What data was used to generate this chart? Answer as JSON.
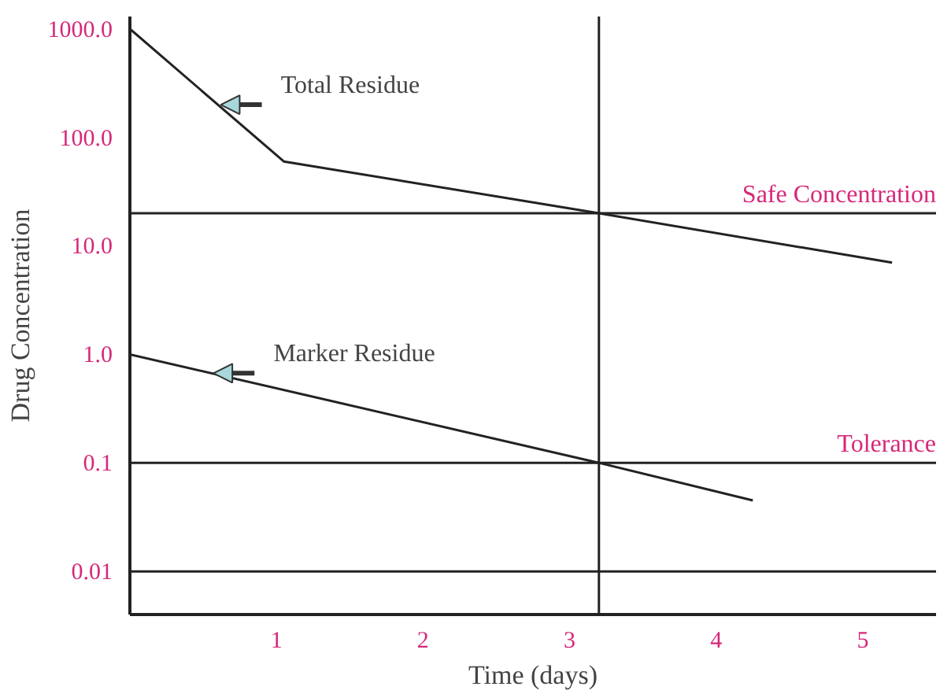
{
  "chart_data": {
    "type": "line",
    "xlabel": "Time (days)",
    "ylabel": "Drug Concentration",
    "log": "y",
    "series": [
      {
        "x": [
          0,
          1.05,
          3.2,
          5.2
        ],
        "values": [
          1000,
          60,
          20,
          7
        ],
        "color": "#222222"
      },
      {
        "x": [
          0,
          3.2,
          4.25
        ],
        "values": [
          1,
          0.1,
          0.045
        ],
        "color": "#222222"
      }
    ],
    "xlim": [
      0,
      5.5
    ],
    "xticks": [
      1,
      2,
      3,
      4,
      5
    ],
    "ylim": [
      0.004,
      1300
    ],
    "yticks": [
      {
        "value": 1000,
        "label": "1000.0"
      },
      {
        "value": 100,
        "label": "100.0"
      },
      {
        "value": 10,
        "label": "10.0"
      },
      {
        "value": 1,
        "label": "1.0"
      },
      0.1,
      0.01
    ],
    "ref_lines": [
      {
        "axis": "y",
        "value": 20,
        "label": "Safe Concentration"
      },
      {
        "axis": "y",
        "value": 0.1,
        "label": "Tolerance"
      },
      {
        "axis": "y",
        "value": 0.01
      },
      {
        "axis": "x",
        "value": 3.2
      }
    ],
    "annotations": [
      {
        "text": "Total Residue",
        "x": 0.6,
        "y": 200
      },
      {
        "text": "Marker Residue",
        "x": 0.55,
        "y": 0.67
      }
    ],
    "grid": false
  }
}
